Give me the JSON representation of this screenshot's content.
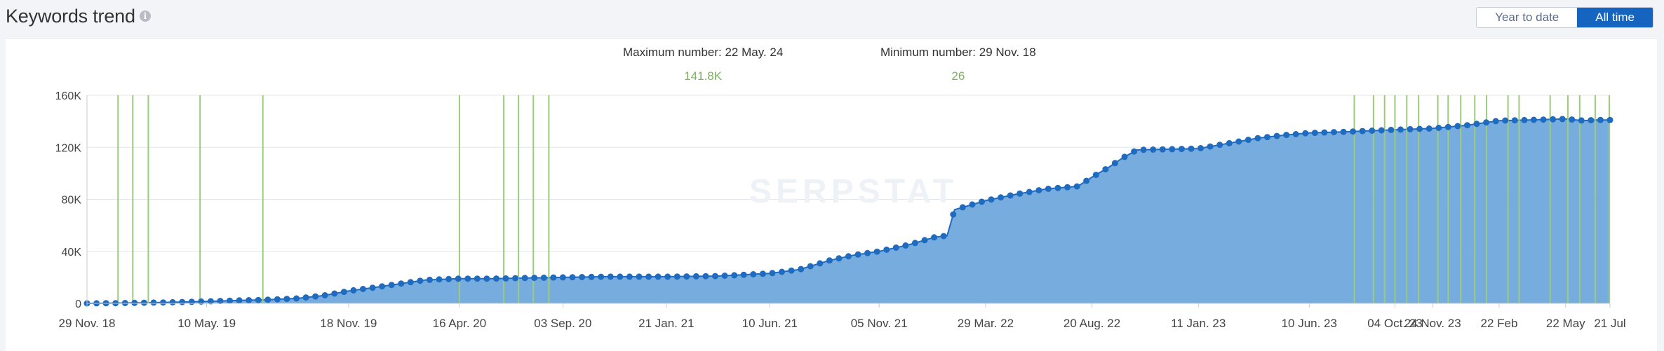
{
  "header": {
    "title": "Keywords trend",
    "info_icon": "info-icon",
    "toggle": {
      "year_to_date": "Year to date",
      "all_time": "All time",
      "selected": "All time"
    }
  },
  "stats": {
    "maximum_label": "Maximum number: 22 May. 24",
    "maximum_value": "141.8K",
    "minimum_label": "Minimum number: 29 Nov. 18",
    "minimum_value": "26"
  },
  "watermark": "SERPSTAT",
  "colors": {
    "area": "#6fa8dc",
    "line": "#1e6bbf",
    "marker": "#1e6bbf",
    "event": "#9ccc7a",
    "accent": "#1565c0",
    "value": "#7bb55a"
  },
  "chart_data": {
    "type": "area",
    "title": "",
    "xlabel": "",
    "ylabel": "",
    "ylim": [
      0,
      160000
    ],
    "yticks": [
      0,
      40000,
      80000,
      120000,
      160000
    ],
    "ytick_labels": [
      "0",
      "40K",
      "80K",
      "120K",
      "160K"
    ],
    "xticks": [
      "2018-11-29",
      "2019-05-10",
      "2019-11-18",
      "2020-04-16",
      "2020-09-03",
      "2021-01-21",
      "2021-06-10",
      "2021-11-05",
      "2022-03-29",
      "2022-08-20",
      "2023-01-11",
      "2023-06-10",
      "2023-10-04",
      "2023-11-24",
      "2024-02-22",
      "2024-05-22",
      "2024-07-21"
    ],
    "xtick_labels": [
      "29 Nov. 18",
      "10 May. 19",
      "18 Nov. 19",
      "16 Apr. 20",
      "03 Sep. 20",
      "21 Jan. 21",
      "10 Jun. 21",
      "05 Nov. 21",
      "29 Mar. 22",
      "20 Aug. 22",
      "11 Jan. 23",
      "10 Jun. 23",
      "04 Oct. 23",
      "24 Nov. 23",
      "22 Feb",
      "22 May",
      "21 Jul"
    ],
    "grid": true,
    "series": [
      {
        "points": [
          [
            "2018-11-29",
            26
          ],
          [
            "2019-01-10",
            200
          ],
          [
            "2019-02-20",
            500
          ],
          [
            "2019-03-30",
            900
          ],
          [
            "2019-05-10",
            1500
          ],
          [
            "2019-06-20",
            2200
          ],
          [
            "2019-08-01",
            2800
          ],
          [
            "2019-09-10",
            3800
          ],
          [
            "2019-10-15",
            6000
          ],
          [
            "2019-11-18",
            9500
          ],
          [
            "2019-12-20",
            12000
          ],
          [
            "2020-01-25",
            15000
          ],
          [
            "2020-03-01",
            18000
          ],
          [
            "2020-04-16",
            19000
          ],
          [
            "2020-06-01",
            19000
          ],
          [
            "2020-07-15",
            19500
          ],
          [
            "2020-09-03",
            20000
          ],
          [
            "2020-11-01",
            20500
          ],
          [
            "2021-01-21",
            20500
          ],
          [
            "2021-04-01",
            21000
          ],
          [
            "2021-06-10",
            23000
          ],
          [
            "2021-07-20",
            26000
          ],
          [
            "2021-08-30",
            33000
          ],
          [
            "2021-10-01",
            37000
          ],
          [
            "2021-11-05",
            40000
          ],
          [
            "2021-12-15",
            45000
          ],
          [
            "2022-01-20",
            51000
          ],
          [
            "2022-02-05",
            52000
          ],
          [
            "2022-02-15",
            72000
          ],
          [
            "2022-03-29",
            79000
          ],
          [
            "2022-05-10",
            84000
          ],
          [
            "2022-06-20",
            88000
          ],
          [
            "2022-08-01",
            90000
          ],
          [
            "2022-08-20",
            97000
          ],
          [
            "2022-09-10",
            104000
          ],
          [
            "2022-10-01",
            112000
          ],
          [
            "2022-10-20",
            118000
          ],
          [
            "2022-11-30",
            118500
          ],
          [
            "2023-01-11",
            119000
          ],
          [
            "2023-02-20",
            123000
          ],
          [
            "2023-04-01",
            127000
          ],
          [
            "2023-05-10",
            129500
          ],
          [
            "2023-06-10",
            131000
          ],
          [
            "2023-08-01",
            132000
          ],
          [
            "2023-10-04",
            133500
          ],
          [
            "2023-11-24",
            134500
          ],
          [
            "2024-01-10",
            137000
          ],
          [
            "2024-02-22",
            140500
          ],
          [
            "2024-04-01",
            141000
          ],
          [
            "2024-05-22",
            141800
          ],
          [
            "2024-06-15",
            140500
          ],
          [
            "2024-07-01",
            141000
          ],
          [
            "2024-07-21",
            141000
          ]
        ]
      }
    ],
    "event_markers": [
      "2019-01-10",
      "2019-01-30",
      "2019-02-20",
      "2019-05-01",
      "2019-07-25",
      "2020-04-16",
      "2020-06-15",
      "2020-07-05",
      "2020-07-25",
      "2020-08-15",
      "2023-08-10",
      "2023-09-05",
      "2023-09-20",
      "2023-10-04",
      "2023-10-20",
      "2023-11-05",
      "2023-12-01",
      "2023-12-15",
      "2024-01-01",
      "2024-01-20",
      "2024-02-05",
      "2024-03-05",
      "2024-03-20",
      "2024-05-01",
      "2024-05-25",
      "2024-06-10",
      "2024-07-01",
      "2024-07-20"
    ]
  }
}
